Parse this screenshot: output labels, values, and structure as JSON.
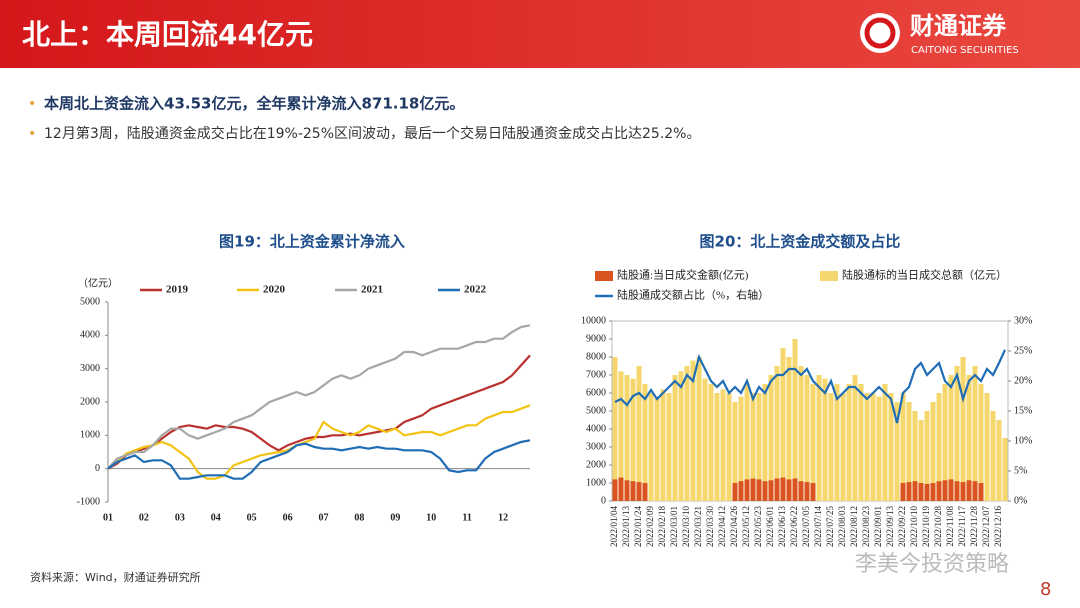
{
  "header": {
    "title": "北上：本周回流44亿元",
    "logo_name": "财通证券",
    "logo_sub": "CAITONG SECURITIES"
  },
  "bullets": [
    "本周北上资金流入43.53亿元，全年累计净流入871.18亿元。",
    "12月第3周，陆股通资金成交占比在19%-25%区间波动，最后一个交易日陆股通资金成交占比达25.2%。"
  ],
  "chart_data": [
    {
      "type": "line",
      "title": "图19：北上资金累计净流入",
      "y_label": "（亿元）",
      "legend": "top",
      "categories": [
        "01",
        null,
        null,
        null,
        "02",
        null,
        null,
        null,
        "03",
        null,
        null,
        null,
        "04",
        null,
        null,
        null,
        "05",
        null,
        null,
        null,
        "06",
        null,
        null,
        null,
        "07",
        null,
        null,
        null,
        "08",
        null,
        null,
        null,
        "09",
        null,
        null,
        null,
        "10",
        null,
        null,
        null,
        "11",
        null,
        null,
        null,
        "12",
        null,
        null,
        null
      ],
      "ylim": [
        -1000,
        5000
      ],
      "yticks": [
        -1000,
        0,
        1000,
        2000,
        3000,
        4000,
        5000
      ],
      "series": [
        {
          "name": "2019",
          "color": "#b8312f",
          "values": [
            0,
            150,
            400,
            500,
            600,
            700,
            900,
            1100,
            1250,
            1300,
            1250,
            1200,
            1300,
            1250,
            1250,
            1200,
            1100,
            900,
            700,
            550,
            700,
            800,
            900,
            950,
            950,
            1000,
            1000,
            1050,
            1000,
            1050,
            1100,
            1150,
            1200,
            1400,
            1500,
            1600,
            1800,
            1900,
            2000,
            2100,
            2200,
            2300,
            2400,
            2500,
            2600,
            2800,
            3100,
            3400
          ]
        },
        {
          "name": "2020",
          "color": "#f2c313",
          "values": [
            0,
            200,
            450,
            550,
            650,
            700,
            800,
            700,
            500,
            300,
            -100,
            -300,
            -300,
            -200,
            100,
            200,
            300,
            400,
            450,
            500,
            550,
            700,
            800,
            900,
            1400,
            1200,
            1100,
            1000,
            1100,
            1300,
            1200,
            1100,
            1200,
            1000,
            1050,
            1100,
            1100,
            1000,
            1100,
            1200,
            1300,
            1300,
            1500,
            1600,
            1700,
            1700,
            1800,
            1900
          ]
        },
        {
          "name": "2021",
          "color": "#a6a6a6",
          "values": [
            0,
            300,
            400,
            500,
            500,
            700,
            1000,
            1200,
            1200,
            1000,
            900,
            1000,
            1100,
            1200,
            1400,
            1500,
            1600,
            1800,
            2000,
            2100,
            2200,
            2300,
            2200,
            2300,
            2500,
            2700,
            2800,
            2700,
            2800,
            3000,
            3100,
            3200,
            3300,
            3500,
            3500,
            3400,
            3500,
            3600,
            3600,
            3600,
            3700,
            3800,
            3800,
            3900,
            3900,
            4100,
            4250,
            4300
          ]
        },
        {
          "name": "2022",
          "color": "#1f6db5",
          "values": [
            0,
            200,
            300,
            400,
            200,
            250,
            250,
            100,
            -300,
            -300,
            -250,
            -200,
            -200,
            -200,
            -300,
            -300,
            -100,
            200,
            300,
            400,
            500,
            700,
            750,
            650,
            600,
            600,
            550,
            600,
            650,
            600,
            650,
            600,
            600,
            550,
            550,
            550,
            500,
            300,
            -50,
            -100,
            -50,
            -50,
            300,
            500,
            600,
            700,
            800,
            850
          ]
        }
      ]
    },
    {
      "type": "combo",
      "title": "图20：北上资金成交额及占比",
      "legend": "top",
      "categories": [
        "2022/01/04",
        null,
        "2022/01/13",
        null,
        "2022/01/24",
        null,
        "2022/02/09",
        null,
        "2022/02/18",
        null,
        "2022/03/01",
        null,
        "2022/03/10",
        null,
        "2022/03/21",
        null,
        "2022/03/30",
        null,
        "2022/04/12",
        null,
        "2022/04/26",
        null,
        "2022/05/12",
        null,
        "2022/05/23",
        null,
        "2022/06/01",
        null,
        "2022/06/13",
        null,
        "2022/06/22",
        null,
        "2022/07/05",
        null,
        "2022/07/14",
        null,
        "2022/07/25",
        null,
        "2022/08/03",
        null,
        "2022/08/12",
        null,
        "2022/08/23",
        null,
        "2022/09/01",
        null,
        "2022/09/13",
        null,
        "2022/09/22",
        null,
        "2022/10/10",
        null,
        "2022/10/19",
        null,
        "2022/10/28",
        null,
        "2022/11/08",
        null,
        "2022/11/17",
        null,
        "2022/11/28",
        null,
        "2022/12/07",
        null,
        "2022/12/16",
        null
      ],
      "ylim": [
        0,
        10000
      ],
      "yticks": [
        0,
        1000,
        2000,
        3000,
        4000,
        5000,
        6000,
        7000,
        8000,
        9000,
        10000
      ],
      "y2lim": [
        0,
        30
      ],
      "y2ticks": [
        {
          "value": 0,
          "label": "0%"
        },
        {
          "value": 5,
          "label": "5%"
        },
        {
          "value": 10,
          "label": "10%"
        },
        {
          "value": 15,
          "label": "15%"
        },
        {
          "value": 20,
          "label": "20%"
        },
        {
          "value": 25,
          "label": "25%"
        },
        {
          "value": 30,
          "label": "30%"
        }
      ],
      "series": [
        {
          "name": "陆股通标的当日成交总额（亿元）",
          "type": "bar",
          "color": "#f5d76e",
          "values": [
            8000,
            7200,
            7000,
            6800,
            7500,
            6500,
            6000,
            5800,
            6200,
            6000,
            7000,
            7200,
            7500,
            7800,
            8000,
            6800,
            6500,
            6000,
            6200,
            6000,
            5500,
            5800,
            6500,
            6000,
            6000,
            6500,
            7000,
            7500,
            8500,
            8000,
            9000,
            7500,
            7000,
            6500,
            7000,
            6800,
            6000,
            6500,
            6000,
            6500,
            7000,
            6500,
            6000,
            6000,
            5800,
            6500,
            6000,
            5500,
            6000,
            5500,
            5000,
            4500,
            5000,
            5500,
            6000,
            6500,
            7000,
            7500,
            8000,
            7000,
            7500,
            6500,
            6000,
            5000,
            4500,
            3500
          ]
        },
        {
          "name": "陆股通:当日成交金额(亿元)",
          "type": "bar",
          "color": "#d9541e",
          "values": [
            1200,
            1300,
            1150,
            1100,
            1050,
            1000,
            null,
            null,
            null,
            null,
            null,
            null,
            null,
            null,
            null,
            null,
            null,
            null,
            null,
            null,
            1000,
            1100,
            1200,
            1250,
            1200,
            1100,
            1150,
            1250,
            1300,
            1200,
            1250,
            1100,
            1050,
            1000,
            null,
            null,
            null,
            null,
            null,
            null,
            null,
            null,
            null,
            null,
            null,
            null,
            null,
            null,
            1000,
            1050,
            1100,
            1000,
            950,
            1000,
            1100,
            1150,
            1200,
            1100,
            1050,
            1150,
            1100,
            1000,
            null,
            null,
            null,
            null
          ]
        },
        {
          "name": "陆股通成交额占比（%，右轴）",
          "type": "line",
          "axis": "y2",
          "color": "#1f6db5",
          "values": [
            16.5,
            17,
            16,
            17.5,
            18,
            17,
            18.5,
            17,
            18,
            19,
            20,
            19,
            21,
            20,
            24,
            22,
            20,
            19,
            20,
            18,
            19,
            18,
            20,
            17,
            19,
            18,
            20,
            21,
            21,
            22,
            22,
            21,
            22,
            20,
            19,
            18,
            20,
            17,
            18,
            19,
            19,
            18,
            17,
            18,
            19,
            18,
            17,
            13,
            18,
            19,
            22,
            23,
            21,
            22,
            23,
            20,
            19,
            21,
            17,
            20,
            21,
            20,
            22,
            21,
            23,
            25.2
          ]
        }
      ]
    }
  ],
  "source": "资料来源：Wind，财通证券研究所",
  "watermark": "李美今投资策略",
  "page_number": "8"
}
